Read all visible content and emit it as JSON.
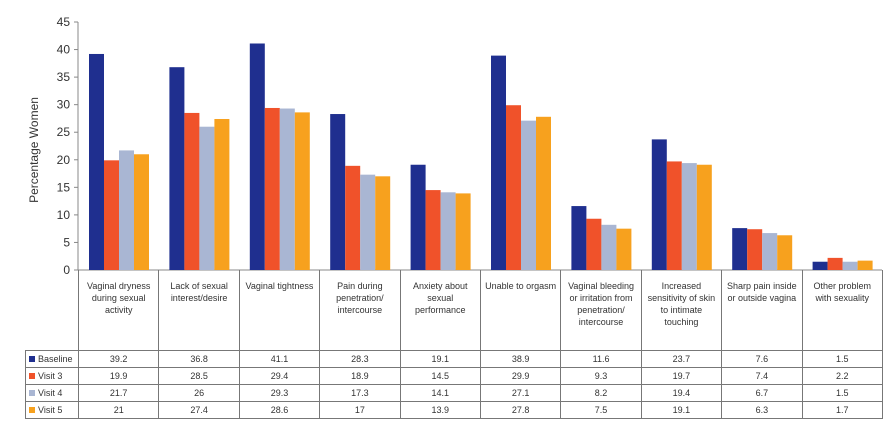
{
  "chart_data": {
    "type": "bar",
    "title": "",
    "xlabel": "",
    "ylabel": "Percentage Women",
    "ylim": [
      0,
      45
    ],
    "yticks": [
      0,
      5,
      10,
      15,
      20,
      25,
      30,
      35,
      40,
      45
    ],
    "grid": false,
    "legend_placement": "table-left",
    "categories": [
      "Vaginal dryness during sexual activity",
      "Lack of sexual interest/desire",
      "Vaginal tightness",
      "Pain during penetration/ intercourse",
      "Anxiety about sexual performance",
      "Unable to orgasm",
      "Vaginal bleeding or irritation from penetration/ intercourse",
      "Increased sensitivity of skin to intimate touching",
      "Sharp pain inside or outside vagina",
      "Other problem with sexuality"
    ],
    "series": [
      {
        "name": "Baseline",
        "color": "#1f2f8f",
        "values": [
          39.2,
          36.8,
          41.1,
          28.3,
          19.1,
          38.9,
          11.6,
          23.7,
          7.6,
          1.5
        ]
      },
      {
        "name": "Visit 3",
        "color": "#f0522a",
        "values": [
          19.9,
          28.5,
          29.4,
          18.9,
          14.5,
          29.9,
          9.3,
          19.7,
          7.4,
          2.2
        ]
      },
      {
        "name": "Visit 4",
        "color": "#a9b6d3",
        "values": [
          21.7,
          26,
          29.3,
          17.3,
          14.1,
          27.1,
          8.2,
          19.4,
          6.7,
          1.5
        ]
      },
      {
        "name": "Visit 5",
        "color": "#f7a11e",
        "values": [
          21,
          27.4,
          28.6,
          17,
          13.9,
          27.8,
          7.5,
          19.1,
          6.3,
          1.7
        ]
      }
    ]
  }
}
